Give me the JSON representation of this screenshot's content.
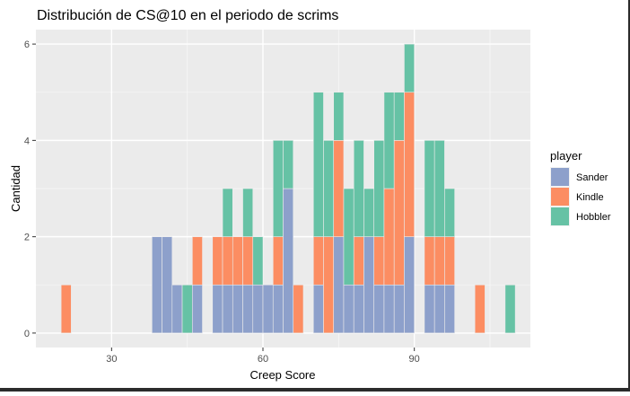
{
  "chart_data": {
    "type": "bar",
    "stacked": true,
    "title": "Distribución de CS@10 en el periodo de scrims",
    "xlabel": "Creep Score",
    "ylabel": "Cantidad",
    "xlim": [
      15,
      113
    ],
    "ylim": [
      -0.3,
      6.3
    ],
    "xticks": [
      30,
      60,
      90
    ],
    "yticks": [
      0,
      2,
      4,
      6
    ],
    "grid": true,
    "legend_title": "player",
    "legend_position": "right",
    "bin_width": 2,
    "stack_order_bottom_to_top": [
      "Sander",
      "Kindle",
      "Hobbler"
    ],
    "x": [
      21,
      39,
      41,
      43,
      45,
      47,
      51,
      53,
      55,
      57,
      59,
      61,
      63,
      65,
      67,
      71,
      73,
      75,
      77,
      79,
      81,
      83,
      85,
      87,
      89,
      93,
      95,
      97,
      103,
      109
    ],
    "series": [
      {
        "name": "Sander",
        "color": "#8DA0CB",
        "values": [
          0,
          2,
          2,
          1,
          0,
          1,
          1,
          1,
          1,
          1,
          1,
          1,
          1,
          3,
          0,
          1,
          0,
          2,
          1,
          1,
          2,
          1,
          1,
          1,
          2,
          1,
          1,
          1,
          0,
          0
        ]
      },
      {
        "name": "Kindle",
        "color": "#FC8D62",
        "values": [
          1,
          0,
          0,
          0,
          0,
          1,
          1,
          1,
          1,
          1,
          0,
          0,
          1,
          0,
          1,
          1,
          2,
          2,
          0,
          1,
          0,
          1,
          2,
          3,
          3,
          1,
          1,
          1,
          1,
          0
        ]
      },
      {
        "name": "Hobbler",
        "color": "#66C2A5",
        "values": [
          0,
          0,
          0,
          0,
          1,
          0,
          0,
          1,
          0,
          1,
          1,
          0,
          2,
          1,
          0,
          3,
          2,
          1,
          2,
          2,
          1,
          2,
          2,
          1,
          1,
          2,
          2,
          1,
          0,
          1
        ]
      }
    ]
  }
}
